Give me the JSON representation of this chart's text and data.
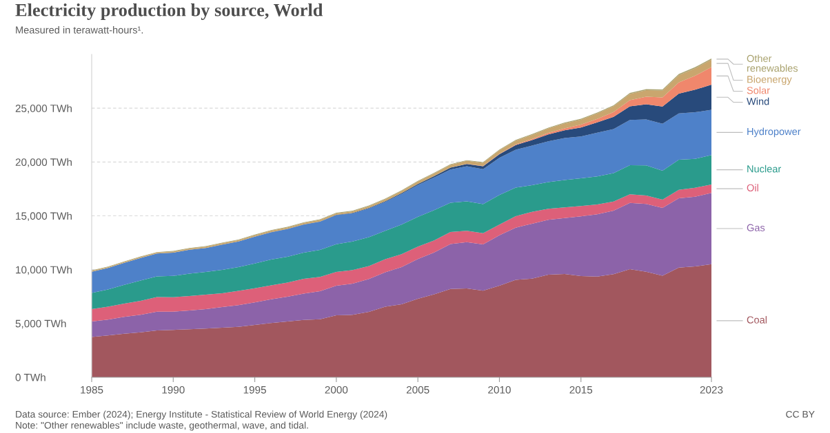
{
  "chart_data": {
    "type": "area",
    "stacked": true,
    "title": "Electricity production by source, World",
    "subtitle": "Measured in terawatt-hours¹.",
    "x": [
      1985,
      1986,
      1987,
      1988,
      1989,
      1990,
      1991,
      1992,
      1993,
      1994,
      1995,
      1996,
      1997,
      1998,
      1999,
      2000,
      2001,
      2002,
      2003,
      2004,
      2005,
      2006,
      2007,
      2008,
      2009,
      2010,
      2011,
      2012,
      2013,
      2014,
      2015,
      2016,
      2017,
      2018,
      2019,
      2020,
      2021,
      2022,
      2023
    ],
    "xlim": [
      1985,
      2023
    ],
    "xticks": [
      1985,
      1990,
      1995,
      2000,
      2005,
      2010,
      2015,
      2023
    ],
    "ylim": [
      0,
      30000
    ],
    "yticks": [
      {
        "value": 0,
        "label": "0 TWh"
      },
      {
        "value": 5000,
        "label": "5,000 TWh"
      },
      {
        "value": 10000,
        "label": "10,000 TWh"
      },
      {
        "value": 15000,
        "label": "15,000 TWh"
      },
      {
        "value": 20000,
        "label": "20,000 TWh"
      },
      {
        "value": 25000,
        "label": "25,000 TWh"
      }
    ],
    "grid": "y",
    "series": [
      {
        "name": "Coal",
        "color": "#a2575e",
        "values": [
          3750,
          3880,
          4050,
          4180,
          4350,
          4400,
          4460,
          4520,
          4600,
          4680,
          4860,
          5040,
          5180,
          5320,
          5390,
          5750,
          5800,
          6080,
          6550,
          6780,
          7300,
          7700,
          8200,
          8250,
          8050,
          8500,
          9050,
          9170,
          9530,
          9600,
          9400,
          9350,
          9580,
          10050,
          9800,
          9440,
          10180,
          10300,
          10500
        ]
      },
      {
        "name": "Gas",
        "color": "#8c63a9",
        "values": [
          1430,
          1470,
          1570,
          1620,
          1740,
          1700,
          1750,
          1820,
          1920,
          2020,
          2100,
          2200,
          2300,
          2450,
          2600,
          2760,
          2900,
          3050,
          3200,
          3460,
          3680,
          3900,
          4180,
          4300,
          4300,
          4700,
          4850,
          5100,
          5100,
          5200,
          5550,
          5800,
          5900,
          6150,
          6300,
          6300,
          6450,
          6480,
          6630
        ]
      },
      {
        "name": "Oil",
        "color": "#dd6079",
        "values": [
          1150,
          1200,
          1230,
          1300,
          1360,
          1340,
          1330,
          1340,
          1290,
          1330,
          1310,
          1300,
          1320,
          1380,
          1330,
          1270,
          1260,
          1200,
          1220,
          1190,
          1160,
          1120,
          1120,
          1060,
          1030,
          980,
          1070,
          1100,
          1030,
          980,
          960,
          900,
          850,
          800,
          790,
          760,
          780,
          830,
          780
        ]
      },
      {
        "name": "Nuclear",
        "color": "#2a9b8c",
        "values": [
          1500,
          1600,
          1740,
          1880,
          1920,
          1980,
          2080,
          2100,
          2170,
          2210,
          2300,
          2400,
          2390,
          2430,
          2520,
          2580,
          2650,
          2690,
          2640,
          2750,
          2770,
          2800,
          2720,
          2740,
          2700,
          2760,
          2650,
          2470,
          2480,
          2540,
          2570,
          2610,
          2640,
          2700,
          2790,
          2690,
          2800,
          2680,
          2740
        ]
      },
      {
        "name": "Hydropower",
        "color": "#4e81c9",
        "values": [
          1980,
          2010,
          2040,
          2100,
          2120,
          2160,
          2230,
          2230,
          2340,
          2370,
          2490,
          2530,
          2580,
          2600,
          2620,
          2700,
          2620,
          2670,
          2690,
          2850,
          2950,
          3040,
          3080,
          3250,
          3250,
          3450,
          3520,
          3680,
          3790,
          3910,
          3900,
          4060,
          4090,
          4200,
          4270,
          4370,
          4300,
          4330,
          4200
        ]
      },
      {
        "name": "Wind",
        "color": "#284a7b",
        "values": [
          0,
          0,
          0,
          0,
          0,
          0,
          0,
          0,
          10,
          10,
          10,
          10,
          10,
          20,
          20,
          30,
          40,
          50,
          60,
          80,
          100,
          130,
          170,
          220,
          280,
          340,
          440,
          520,
          640,
          710,
          830,
          960,
          1140,
          1270,
          1420,
          1590,
          1850,
          2100,
          2330
        ]
      },
      {
        "name": "Solar",
        "color": "#f0876c",
        "values": [
          0,
          0,
          0,
          0,
          0,
          0,
          0,
          0,
          0,
          0,
          0,
          0,
          0,
          0,
          0,
          0,
          0,
          0,
          0,
          0,
          0,
          10,
          10,
          10,
          20,
          30,
          60,
          100,
          140,
          190,
          260,
          330,
          440,
          570,
          700,
          850,
          1030,
          1300,
          1630
        ]
      },
      {
        "name": "Bioenergy",
        "color": "#c9a66e",
        "values": [
          80,
          80,
          90,
          100,
          100,
          100,
          110,
          120,
          120,
          120,
          130,
          140,
          140,
          140,
          150,
          140,
          150,
          160,
          180,
          200,
          220,
          240,
          260,
          280,
          300,
          330,
          350,
          380,
          410,
          450,
          470,
          510,
          540,
          580,
          610,
          640,
          680,
          690,
          700
        ]
      },
      {
        "name": "Other renewables",
        "color": "#a9a26e",
        "values": [
          40,
          40,
          40,
          40,
          40,
          50,
          50,
          50,
          50,
          50,
          50,
          50,
          50,
          50,
          50,
          60,
          60,
          60,
          60,
          60,
          60,
          60,
          60,
          60,
          60,
          70,
          70,
          70,
          70,
          80,
          80,
          80,
          80,
          90,
          90,
          90,
          100,
          100,
          100
        ]
      }
    ],
    "annotations": [
      "Data source: Ember (2024); Energy Institute - Statistical Review of World Energy (2024)",
      "CC BY",
      "Note: \"Other renewables\" include waste, geothermal, wave, and tidal."
    ]
  }
}
